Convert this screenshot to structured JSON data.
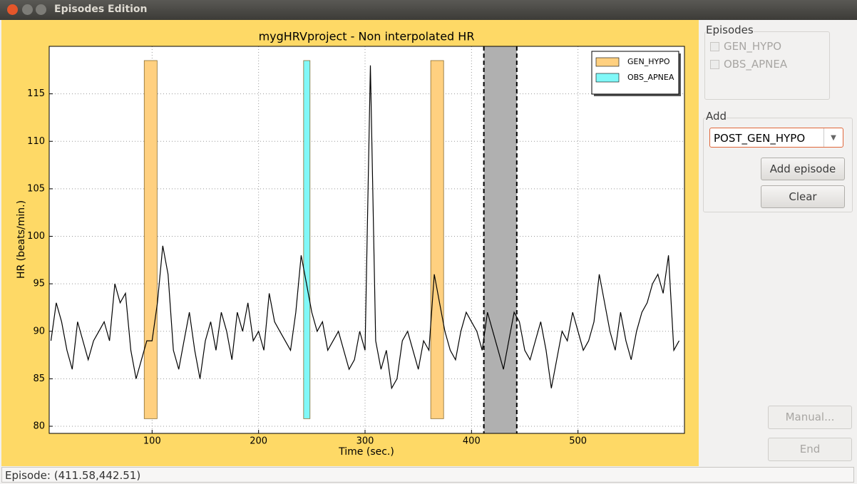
{
  "window_title": "Episodes Edition",
  "chart_data": {
    "type": "line",
    "title": "mygHRVproject - Non interpolated HR",
    "xlabel": "Time (sec.)",
    "ylabel": "HR (beats/min.)",
    "xlim": [
      3.35,
      600
    ],
    "ylim": [
      79.25,
      120
    ],
    "xticks": [
      100,
      200,
      300,
      400,
      500
    ],
    "yticks": [
      80,
      85,
      90,
      95,
      100,
      105,
      110,
      115
    ],
    "grid": true,
    "color": "#000000",
    "x": [
      5,
      10,
      15,
      20,
      25,
      30,
      35,
      40,
      45,
      50,
      55,
      60,
      65,
      70,
      75,
      80,
      85,
      90,
      95,
      100,
      105,
      110,
      115,
      120,
      125,
      130,
      135,
      140,
      145,
      150,
      155,
      160,
      165,
      170,
      175,
      180,
      185,
      190,
      195,
      200,
      205,
      210,
      215,
      220,
      225,
      230,
      235,
      240,
      245,
      250,
      255,
      260,
      265,
      270,
      275,
      280,
      285,
      290,
      295,
      300,
      305,
      310,
      315,
      320,
      325,
      330,
      335,
      340,
      345,
      350,
      355,
      360,
      365,
      370,
      375,
      380,
      385,
      390,
      395,
      400,
      405,
      410,
      415,
      420,
      425,
      430,
      435,
      440,
      445,
      450,
      455,
      460,
      465,
      470,
      475,
      480,
      485,
      490,
      495,
      500,
      505,
      510,
      515,
      520,
      525,
      530,
      535,
      540,
      545,
      550,
      555,
      560,
      565,
      570,
      575,
      580,
      585,
      590,
      595
    ],
    "values": [
      89,
      93,
      91,
      88,
      86,
      91,
      89,
      87,
      89,
      90,
      91,
      89,
      95,
      93,
      94,
      88,
      85,
      87,
      89,
      89,
      93,
      99,
      96,
      88,
      86,
      89,
      92,
      88,
      85,
      89,
      91,
      88,
      92,
      90,
      87,
      92,
      90,
      93,
      89,
      90,
      88,
      94,
      91,
      90,
      89,
      88,
      92,
      98,
      95,
      92,
      90,
      91,
      88,
      89,
      90,
      88,
      86,
      87,
      90,
      88,
      118,
      89,
      86,
      88,
      84,
      85,
      89,
      90,
      88,
      86,
      89,
      88,
      96,
      93,
      90,
      88,
      87,
      90,
      92,
      91,
      90,
      88,
      92,
      90,
      88,
      86,
      89,
      92,
      91,
      88,
      87,
      89,
      91,
      88,
      84,
      87,
      90,
      89,
      92,
      90,
      88,
      89,
      91,
      96,
      93,
      90,
      88,
      92,
      89,
      87,
      90,
      92,
      93,
      95,
      96,
      94,
      98,
      88,
      89
    ],
    "band": [
      80.8,
      118.5
    ],
    "episode_types": [
      {
        "name": "GEN_HYPO",
        "color": "#ffd080",
        "intervals": [
          [
            92.6,
            104.7
          ],
          [
            361.7,
            373.8
          ]
        ]
      },
      {
        "name": "OBS_APNEA",
        "color": "#80f8f8",
        "intervals": [
          [
            242.3,
            248.3
          ]
        ]
      }
    ],
    "selection": [
      411.58,
      442.51
    ],
    "selection_color": "#b0b0b0",
    "legend": "upper right"
  },
  "episodes_panel": {
    "title": "Episodes",
    "items": [
      "GEN_HYPO",
      "OBS_APNEA"
    ]
  },
  "add_panel": {
    "title": "Add",
    "combo": "POST_GEN_HYPO",
    "buttons": [
      "Add episode",
      "Clear"
    ]
  },
  "buttons": [
    "Manual...",
    "End"
  ],
  "status_bar": "Episode: (411.58,442.51)"
}
